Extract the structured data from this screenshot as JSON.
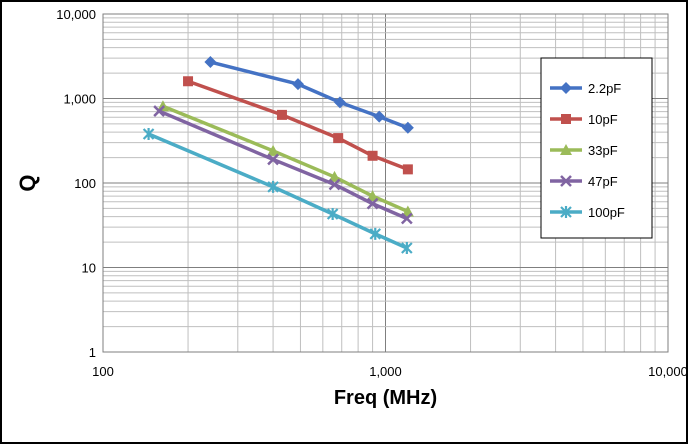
{
  "chart_data": {
    "type": "line",
    "xlabel": "Freq (MHz)",
    "ylabel": "Q",
    "xscale": "log",
    "yscale": "log",
    "xlim": [
      100,
      10000
    ],
    "ylim": [
      1,
      10000
    ],
    "xticks": [
      {
        "value": 100,
        "label": "100"
      },
      {
        "value": 1000,
        "label": "1,000"
      },
      {
        "value": 10000,
        "label": "10,000"
      }
    ],
    "yticks": [
      {
        "value": 1,
        "label": "1"
      },
      {
        "value": 10,
        "label": "10"
      },
      {
        "value": 100,
        "label": "100"
      },
      {
        "value": 1000,
        "label": "1,000"
      },
      {
        "value": 10000,
        "label": "10,000"
      }
    ],
    "grid": true,
    "legend_position": "right",
    "series": [
      {
        "name": "2.2pF",
        "color": "#4472C4",
        "marker": "diamond",
        "x": [
          240,
          490,
          690,
          950,
          1200
        ],
        "y": [
          2700,
          1480,
          900,
          610,
          450
        ]
      },
      {
        "name": "10pF",
        "color": "#C0504D",
        "marker": "square",
        "x": [
          200,
          430,
          680,
          900,
          1200
        ],
        "y": [
          1600,
          640,
          340,
          210,
          145
        ]
      },
      {
        "name": "33pF",
        "color": "#9BBB59",
        "marker": "triangle",
        "x": [
          163,
          400,
          660,
          900,
          1200
        ],
        "y": [
          810,
          240,
          118,
          70,
          46
        ]
      },
      {
        "name": "47pF",
        "color": "#8064A2",
        "marker": "x",
        "x": [
          158,
          400,
          660,
          900,
          1190
        ],
        "y": [
          710,
          190,
          96,
          57,
          38
        ]
      },
      {
        "name": "100pF",
        "color": "#4BACC6",
        "marker": "star",
        "x": [
          145,
          400,
          650,
          920,
          1190
        ],
        "y": [
          380,
          90,
          43,
          25,
          17
        ]
      }
    ]
  }
}
